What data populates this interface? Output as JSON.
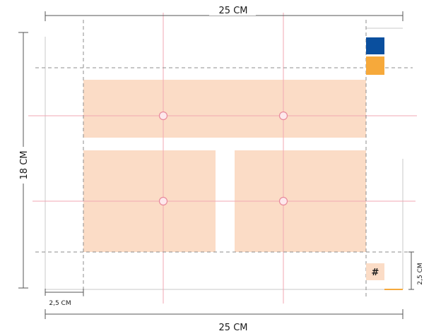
{
  "dimensions": {
    "width_top": "25 CM",
    "width_bottom": "25 CM",
    "height_left": "18 CM",
    "margin_left": "2,5 CM",
    "margin_right": "2,5 CM"
  },
  "page_number_symbol": "#",
  "colors": {
    "content_block": "#fbdcc6",
    "guide_red": "#f2a7b3",
    "dashed_margin": "#8c8c8c",
    "swatch_blue": "#0a4f9e",
    "swatch_orange": "#f6a93b",
    "dimension_line": "#555555"
  }
}
